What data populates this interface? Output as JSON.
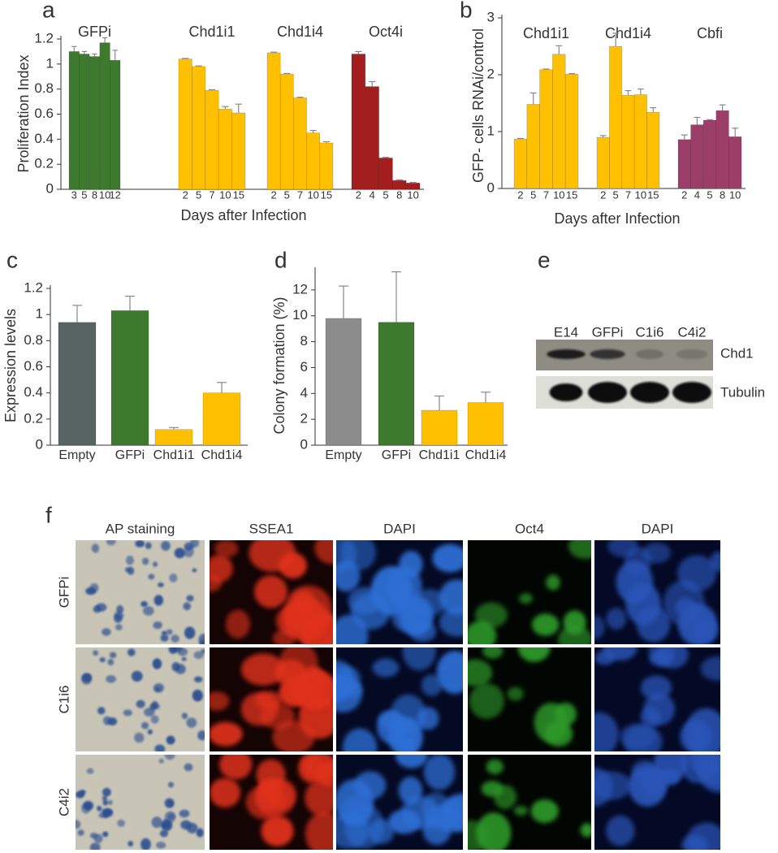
{
  "panel_labels": [
    "a",
    "b",
    "c",
    "d",
    "e",
    "f"
  ],
  "chart_data": [
    {
      "type": "bar",
      "ylabel": "Proliferation Index",
      "xlabel": "Days after Infection",
      "ylim": [
        0,
        1.2
      ],
      "yticks": [
        0,
        0.2,
        0.4,
        0.6,
        0.8,
        1,
        1.2
      ],
      "series": [
        {
          "name": "GFPi",
          "color": "#3d7a2e",
          "categories": [
            "3",
            "5",
            "8",
            "10",
            "12"
          ],
          "values": [
            1.1,
            1.08,
            1.06,
            1.17,
            1.03
          ],
          "errors": [
            0.04,
            0.02,
            0.02,
            0.04,
            0.08
          ]
        },
        {
          "name": "Chd1i1",
          "color": "#ffc000",
          "categories": [
            "2",
            "5",
            "7",
            "10",
            "15"
          ],
          "values": [
            1.04,
            0.98,
            0.79,
            0.64,
            0.61
          ],
          "errors": [
            0.005,
            0.005,
            0.005,
            0.02,
            0.07
          ]
        },
        {
          "name": "Chd1i4",
          "color": "#ffc000",
          "categories": [
            "2",
            "5",
            "7",
            "10",
            "15"
          ],
          "values": [
            1.09,
            0.92,
            0.73,
            0.45,
            0.37
          ],
          "errors": [
            0.005,
            0.005,
            0.005,
            0.02,
            0.01
          ]
        },
        {
          "name": "Oct4i",
          "color": "#a31f1f",
          "categories": [
            "2",
            "4",
            "5",
            "8",
            "10"
          ],
          "values": [
            1.08,
            0.82,
            0.25,
            0.07,
            0.05
          ],
          "errors": [
            0.02,
            0.04,
            0.005,
            0.005,
            0.005
          ]
        }
      ]
    },
    {
      "type": "bar",
      "ylabel": "GFP- cells RNAi/control",
      "xlabel": "Days after Infection",
      "ylim": [
        0,
        3
      ],
      "yticks": [
        0,
        1,
        2,
        3
      ],
      "series": [
        {
          "name": "Chd1i1",
          "color": "#ffc000",
          "categories": [
            "2",
            "5",
            "7",
            "10",
            "15"
          ],
          "values": [
            0.87,
            1.48,
            2.09,
            2.36,
            2.01
          ],
          "errors": [
            0.01,
            0.2,
            0.01,
            0.15,
            0.01
          ]
        },
        {
          "name": "Chd1i4",
          "color": "#ffc000",
          "categories": [
            "2",
            "5",
            "7",
            "10",
            "15"
          ],
          "values": [
            0.9,
            2.5,
            1.64,
            1.65,
            1.34
          ],
          "errors": [
            0.03,
            0.23,
            0.08,
            0.1,
            0.08
          ]
        },
        {
          "name": "Cbfi",
          "color": "#9b3f68",
          "categories": [
            "2",
            "4",
            "5",
            "8",
            "10"
          ],
          "values": [
            0.86,
            1.12,
            1.2,
            1.37,
            0.91
          ],
          "errors": [
            0.08,
            0.13,
            0.01,
            0.1,
            0.15
          ]
        }
      ]
    },
    {
      "type": "bar",
      "ylabel": "Expression levels",
      "ylim": [
        0,
        1.2
      ],
      "yticks": [
        0,
        0.2,
        0.4,
        0.6,
        0.8,
        1,
        1.2
      ],
      "categories": [
        "Empty",
        "GFPi",
        "Chd1i1",
        "Chd1i4"
      ],
      "values": [
        0.94,
        1.03,
        0.12,
        0.4
      ],
      "errors": [
        0.13,
        0.11,
        0.015,
        0.08
      ],
      "colors": [
        "#576461",
        "#3d7a2e",
        "#ffc000",
        "#ffc000"
      ]
    },
    {
      "type": "bar",
      "ylabel": "Colony formation (%)",
      "ylim": [
        0,
        13.5
      ],
      "yticks": [
        0,
        2,
        4,
        6,
        8,
        10,
        12
      ],
      "categories": [
        "Empty",
        "GFPi",
        "Chd1i1",
        "Chd1i4"
      ],
      "values": [
        9.8,
        9.5,
        2.7,
        3.3
      ],
      "errors": [
        2.5,
        3.9,
        1.1,
        0.8
      ],
      "colors": [
        "#8c8c8c",
        "#3d7a2e",
        "#ffc000",
        "#ffc000"
      ]
    }
  ],
  "blot": {
    "lanes": [
      "E14",
      "GFPi",
      "C1i6",
      "C4i2"
    ],
    "rows": [
      "Chd1",
      "Tubulin"
    ]
  },
  "staining": {
    "columns": [
      "AP staining",
      "SSEA1",
      "DAPI",
      "Oct4",
      "DAPI"
    ],
    "rows": [
      "GFPi",
      "C1i6",
      "C4i2"
    ]
  }
}
